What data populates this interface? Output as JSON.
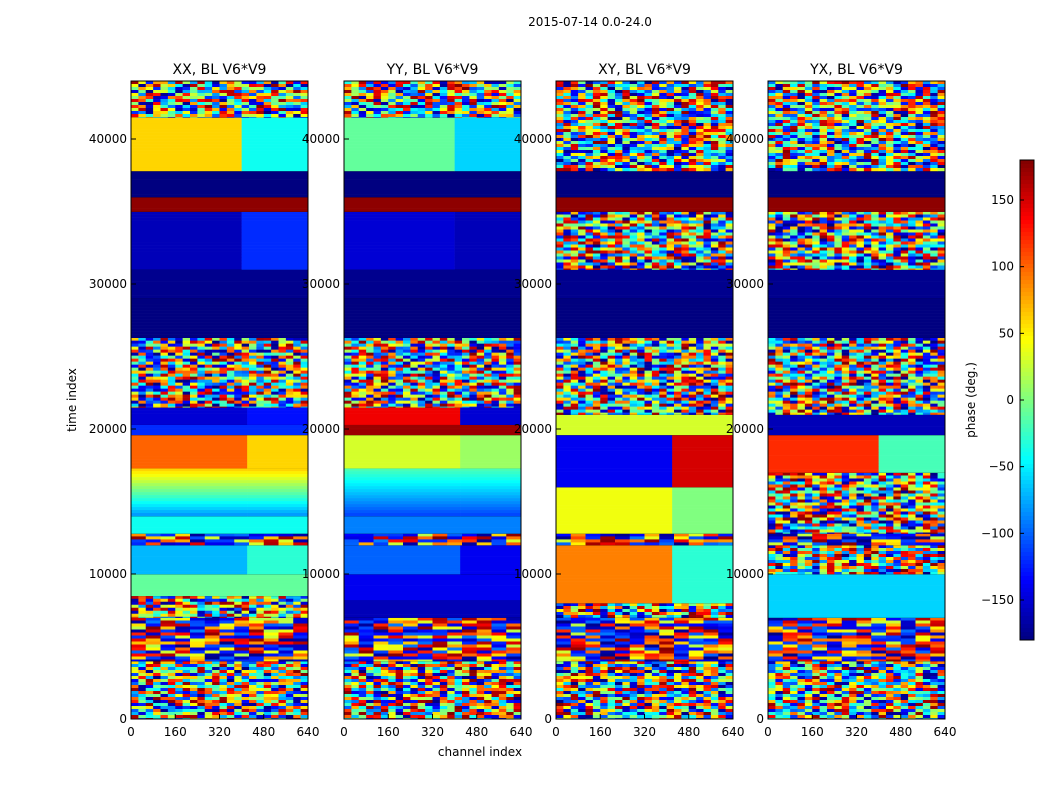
{
  "suptitle": "2015-07-14 0.0-24.0",
  "chart_data": {
    "type": "heatmap",
    "xlabel": "channel index",
    "ylabel": "time index",
    "xlim": [
      0,
      640
    ],
    "ylim": [
      0,
      44000
    ],
    "xticks": [
      0,
      160,
      320,
      480,
      640
    ],
    "yticks": [
      0,
      10000,
      20000,
      30000,
      40000
    ],
    "colorbar": {
      "label": "phase (deg.)",
      "range": [
        -180,
        180
      ],
      "ticks": [
        150,
        100,
        50,
        0,
        -50,
        -100,
        -150
      ],
      "tick_labels": [
        "150",
        "100",
        "50",
        "0",
        "−50",
        "−100",
        "−150"
      ],
      "colormap": "jet"
    },
    "panels": [
      {
        "title": "XX, BL V6*V9",
        "ytick_labels": [
          "0",
          "10000",
          "20000",
          "30000",
          "40000"
        ],
        "bands": [
          {
            "t0": 0,
            "t1": 4000,
            "kind": "noise"
          },
          {
            "t0": 4000,
            "t1": 7000,
            "kind": "striped"
          },
          {
            "t0": 7000,
            "t1": 8500,
            "kind": "noise"
          },
          {
            "t0": 8500,
            "t1": 10000,
            "kind": "flat",
            "p": -10
          },
          {
            "t0": 10000,
            "t1": 12000,
            "kind": "flat",
            "p": -70,
            "p2": -30,
            "edge": 420
          },
          {
            "t0": 12000,
            "t1": 12800,
            "kind": "striped"
          },
          {
            "t0": 12800,
            "t1": 14000,
            "kind": "flat",
            "p": -40
          },
          {
            "t0": 14000,
            "t1": 17300,
            "kind": "gradient",
            "p": 60,
            "p2": -80,
            "edge": 420
          },
          {
            "t0": 17300,
            "t1": 19600,
            "kind": "flat",
            "p": 100,
            "p2": 60,
            "edge": 420
          },
          {
            "t0": 19600,
            "t1": 20300,
            "kind": "flat",
            "p": -120
          },
          {
            "t0": 20300,
            "t1": 21500,
            "kind": "flat",
            "p": -150,
            "p2": -130,
            "edge": 420
          },
          {
            "t0": 21500,
            "t1": 26300,
            "kind": "noise"
          },
          {
            "t0": 26300,
            "t1": 29000,
            "kind": "flat",
            "p": -180
          },
          {
            "t0": 29000,
            "t1": 31000,
            "kind": "flat",
            "p": -175
          },
          {
            "t0": 31000,
            "t1": 35000,
            "kind": "flat",
            "p": -160,
            "p2": -120,
            "edge": 400
          },
          {
            "t0": 35000,
            "t1": 36000,
            "kind": "flat",
            "p": 175
          },
          {
            "t0": 36000,
            "t1": 37800,
            "kind": "flat",
            "p": -180
          },
          {
            "t0": 37800,
            "t1": 41500,
            "kind": "flat",
            "p": 60,
            "p2": -40,
            "edge": 400
          },
          {
            "t0": 41500,
            "t1": 44000,
            "kind": "noise"
          }
        ]
      },
      {
        "title": "YY, BL V6*V9",
        "ytick_labels": [
          "",
          "10000",
          "20000",
          "30000",
          "40000"
        ],
        "bands": [
          {
            "t0": 0,
            "t1": 4000,
            "kind": "noise"
          },
          {
            "t0": 4000,
            "t1": 7000,
            "kind": "striped"
          },
          {
            "t0": 7000,
            "t1": 8200,
            "kind": "flat",
            "p": -160
          },
          {
            "t0": 8200,
            "t1": 10000,
            "kind": "flat",
            "p": -140
          },
          {
            "t0": 10000,
            "t1": 12000,
            "kind": "flat",
            "p": -100,
            "p2": -140,
            "edge": 420
          },
          {
            "t0": 12000,
            "t1": 12800,
            "kind": "striped"
          },
          {
            "t0": 12800,
            "t1": 14000,
            "kind": "flat",
            "p": -90
          },
          {
            "t0": 14000,
            "t1": 17300,
            "kind": "gradient",
            "p": -20,
            "p2": -110,
            "edge": 420
          },
          {
            "t0": 17300,
            "t1": 19600,
            "kind": "flat",
            "p": 30,
            "p2": 10,
            "edge": 420
          },
          {
            "t0": 19600,
            "t1": 20300,
            "kind": "flat",
            "p": 170
          },
          {
            "t0": 20300,
            "t1": 21500,
            "kind": "flat",
            "p": 140,
            "p2": -150,
            "edge": 420
          },
          {
            "t0": 21500,
            "t1": 26300,
            "kind": "noise"
          },
          {
            "t0": 26300,
            "t1": 29000,
            "kind": "flat",
            "p": -180
          },
          {
            "t0": 29000,
            "t1": 31000,
            "kind": "flat",
            "p": -175
          },
          {
            "t0": 31000,
            "t1": 35000,
            "kind": "flat",
            "p": -150,
            "p2": -160,
            "edge": 400
          },
          {
            "t0": 35000,
            "t1": 36000,
            "kind": "flat",
            "p": 175
          },
          {
            "t0": 36000,
            "t1": 37800,
            "kind": "flat",
            "p": -180
          },
          {
            "t0": 37800,
            "t1": 41500,
            "kind": "flat",
            "p": -10,
            "p2": -60,
            "edge": 400
          },
          {
            "t0": 41500,
            "t1": 44000,
            "kind": "noise"
          }
        ]
      },
      {
        "title": "XY, BL V6*V9",
        "ytick_labels": [
          "0",
          "10000",
          "20000",
          "30000",
          "40000"
        ],
        "bands": [
          {
            "t0": 0,
            "t1": 4000,
            "kind": "noise"
          },
          {
            "t0": 4000,
            "t1": 7000,
            "kind": "striped"
          },
          {
            "t0": 7000,
            "t1": 8000,
            "kind": "noise"
          },
          {
            "t0": 8000,
            "t1": 12000,
            "kind": "flat",
            "p": 90,
            "p2": -30,
            "edge": 420
          },
          {
            "t0": 12000,
            "t1": 12800,
            "kind": "striped"
          },
          {
            "t0": 12800,
            "t1": 16000,
            "kind": "flat",
            "p": 40,
            "p2": 0,
            "edge": 420
          },
          {
            "t0": 16000,
            "t1": 19600,
            "kind": "flat",
            "p": -140,
            "p2": 150,
            "edge": 420
          },
          {
            "t0": 19600,
            "t1": 21000,
            "kind": "flat",
            "p": 30
          },
          {
            "t0": 21000,
            "t1": 26300,
            "kind": "noise"
          },
          {
            "t0": 26300,
            "t1": 29000,
            "kind": "flat",
            "p": -180
          },
          {
            "t0": 29000,
            "t1": 31000,
            "kind": "flat",
            "p": -175
          },
          {
            "t0": 31000,
            "t1": 35000,
            "kind": "noise"
          },
          {
            "t0": 35000,
            "t1": 36000,
            "kind": "flat",
            "p": 175
          },
          {
            "t0": 36000,
            "t1": 37800,
            "kind": "flat",
            "p": -180
          },
          {
            "t0": 37800,
            "t1": 44000,
            "kind": "noise"
          }
        ]
      },
      {
        "title": "YX, BL V6*V9",
        "ytick_labels": [
          "0",
          "10000",
          "20000",
          "30000",
          "40000"
        ],
        "bands": [
          {
            "t0": 0,
            "t1": 4000,
            "kind": "noise"
          },
          {
            "t0": 4000,
            "t1": 7000,
            "kind": "striped"
          },
          {
            "t0": 7000,
            "t1": 10000,
            "kind": "flat",
            "p": -60
          },
          {
            "t0": 10000,
            "t1": 12000,
            "kind": "noise"
          },
          {
            "t0": 12000,
            "t1": 12800,
            "kind": "striped"
          },
          {
            "t0": 12800,
            "t1": 17000,
            "kind": "noise"
          },
          {
            "t0": 17000,
            "t1": 19600,
            "kind": "flat",
            "p": 120,
            "p2": -20,
            "edge": 400
          },
          {
            "t0": 19600,
            "t1": 21000,
            "kind": "flat",
            "p": -160
          },
          {
            "t0": 21000,
            "t1": 26300,
            "kind": "noise"
          },
          {
            "t0": 26300,
            "t1": 29000,
            "kind": "flat",
            "p": -180
          },
          {
            "t0": 29000,
            "t1": 31000,
            "kind": "flat",
            "p": -175
          },
          {
            "t0": 31000,
            "t1": 35000,
            "kind": "noise"
          },
          {
            "t0": 35000,
            "t1": 36000,
            "kind": "flat",
            "p": 175
          },
          {
            "t0": 36000,
            "t1": 37800,
            "kind": "flat",
            "p": -180
          },
          {
            "t0": 37800,
            "t1": 44000,
            "kind": "noise"
          }
        ]
      }
    ]
  }
}
